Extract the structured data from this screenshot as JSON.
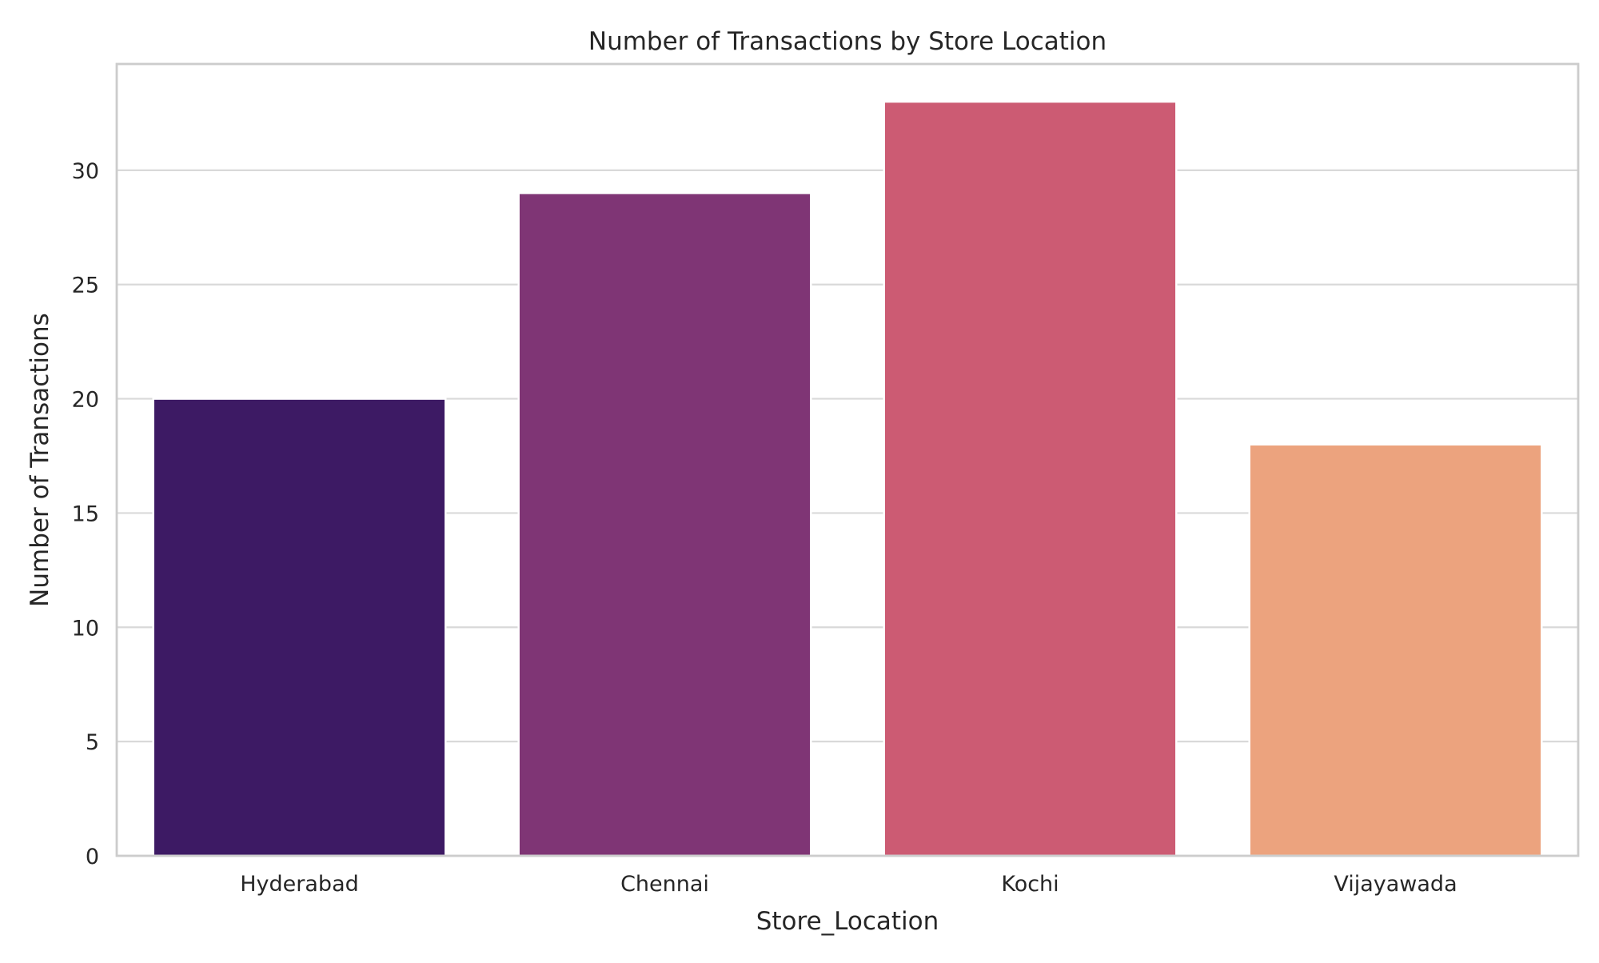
{
  "chart_data": {
    "type": "bar",
    "title": "Number of Transactions by Store Location",
    "xlabel": "Store_Location",
    "ylabel": "Number of Transactions",
    "categories": [
      "Hyderabad",
      "Chennai",
      "Kochi",
      "Vijayawada"
    ],
    "values": [
      20,
      29,
      33,
      18
    ],
    "colors": [
      "#3d1a64",
      "#7f3575",
      "#cc5b73",
      "#eca37e"
    ],
    "ylim": [
      0,
      34.65
    ],
    "yticks": [
      0,
      5,
      10,
      15,
      20,
      25,
      30
    ],
    "grid": true,
    "grid_axis": "y"
  }
}
